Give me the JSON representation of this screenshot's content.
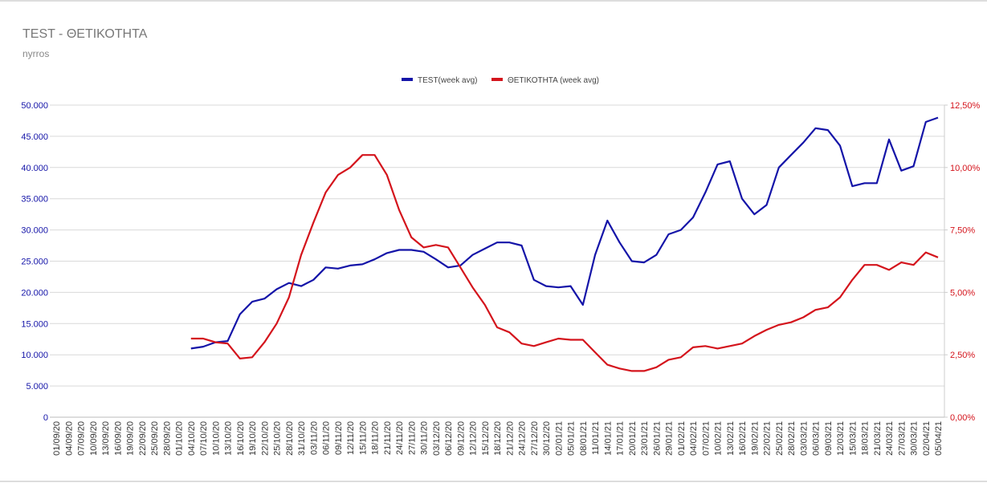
{
  "chart_data": {
    "type": "line",
    "title": "TEST - ΘΕΤΙΚΟΤΗΤΑ",
    "subtitle": "nyrros",
    "categories": [
      "01/09/20",
      "04/09/20",
      "07/09/20",
      "10/09/20",
      "13/09/20",
      "16/09/20",
      "19/09/20",
      "22/09/20",
      "25/09/20",
      "28/09/20",
      "01/10/20",
      "04/10/20",
      "07/10/20",
      "10/10/20",
      "13/10/20",
      "16/10/20",
      "19/10/20",
      "22/10/20",
      "25/10/20",
      "28/10/20",
      "31/10/20",
      "03/11/20",
      "06/11/20",
      "09/11/20",
      "12/11/20",
      "15/11/20",
      "18/11/20",
      "21/11/20",
      "24/11/20",
      "27/11/20",
      "30/11/20",
      "03/12/20",
      "06/12/20",
      "09/12/20",
      "12/12/20",
      "15/12/20",
      "18/12/20",
      "21/12/20",
      "24/12/20",
      "27/12/20",
      "30/12/20",
      "02/01/21",
      "05/01/21",
      "08/01/21",
      "11/01/21",
      "14/01/21",
      "17/01/21",
      "20/01/21",
      "23/01/21",
      "26/01/21",
      "29/01/21",
      "01/02/21",
      "04/02/21",
      "07/02/21",
      "10/02/21",
      "13/02/21",
      "16/02/21",
      "19/02/21",
      "22/02/21",
      "25/02/21",
      "28/02/21",
      "03/03/21",
      "06/03/21",
      "09/03/21",
      "12/03/21",
      "15/03/21",
      "18/03/21",
      "21/03/21",
      "24/03/21",
      "27/03/21",
      "30/03/21",
      "02/04/21",
      "05/04/21"
    ],
    "series": [
      {
        "name": "TEST(week avg)",
        "color": "#1414a8",
        "values": [
          null,
          null,
          null,
          null,
          null,
          null,
          null,
          null,
          null,
          null,
          null,
          11000,
          11300,
          12000,
          12200,
          16500,
          18500,
          19000,
          20500,
          21500,
          21000,
          22000,
          24000,
          23800,
          24300,
          24500,
          25300,
          26300,
          26800,
          26800,
          26500,
          25300,
          24000,
          24300,
          26000,
          27000,
          28000,
          28000,
          27500,
          22000,
          21000,
          20800,
          21000,
          18000,
          26000,
          31500,
          28000,
          25000,
          24800,
          26000,
          29300,
          30000,
          32000,
          36000,
          40500,
          41000,
          35000,
          32500,
          34000,
          40000,
          42000,
          44000,
          46300,
          46000,
          43500,
          37000,
          37500,
          37500,
          44500,
          39500,
          40200,
          47300,
          48000
        ]
      },
      {
        "name": "ΘΕΤΙΚΟΤΗΤΑ (week avg)",
        "color": "#d4141c",
        "axis": "y2",
        "values": [
          null,
          null,
          null,
          null,
          null,
          null,
          null,
          null,
          null,
          null,
          null,
          3.15,
          3.15,
          3.0,
          2.95,
          2.35,
          2.4,
          3.0,
          3.75,
          4.8,
          6.5,
          7.8,
          9.0,
          9.7,
          10.0,
          10.5,
          10.5,
          9.7,
          8.3,
          7.2,
          6.8,
          6.9,
          6.8,
          6.0,
          5.2,
          4.5,
          3.6,
          3.4,
          2.95,
          2.85,
          3.0,
          3.15,
          3.1,
          3.1,
          2.6,
          2.1,
          1.95,
          1.85,
          1.85,
          2.0,
          2.3,
          2.4,
          2.8,
          2.85,
          2.75,
          2.85,
          2.95,
          3.25,
          3.5,
          3.7,
          3.8,
          4.0,
          4.3,
          4.4,
          4.8,
          5.5,
          6.1,
          6.1,
          5.9,
          6.2,
          6.1,
          6.6,
          6.4
        ]
      }
    ],
    "ylim": [
      0,
      50000
    ],
    "yticks": [
      0,
      {
        "value": 5000,
        "label": "5.000"
      },
      {
        "value": 10000,
        "label": "10.000"
      },
      {
        "value": 15000,
        "label": "15.000"
      },
      {
        "value": 20000,
        "label": "20.000"
      },
      {
        "value": 25000,
        "label": "25.000"
      },
      {
        "value": 30000,
        "label": "30.000"
      },
      {
        "value": 35000,
        "label": "35.000"
      },
      {
        "value": 40000,
        "label": "40.000"
      },
      {
        "value": 45000,
        "label": "45.000"
      },
      {
        "value": 50000,
        "label": "50.000"
      }
    ],
    "y2lim": [
      0,
      12.5
    ],
    "y2ticks": [
      {
        "value": 0,
        "label": "0,00%"
      },
      {
        "value": 2.5,
        "label": "2,50%"
      },
      {
        "value": 5,
        "label": "5,00%"
      },
      {
        "value": 7.5,
        "label": "7,50%"
      },
      {
        "value": 10,
        "label": "10,00%"
      },
      {
        "value": 12.5,
        "label": "12,50%"
      }
    ],
    "grid": true,
    "legend": "top"
  }
}
